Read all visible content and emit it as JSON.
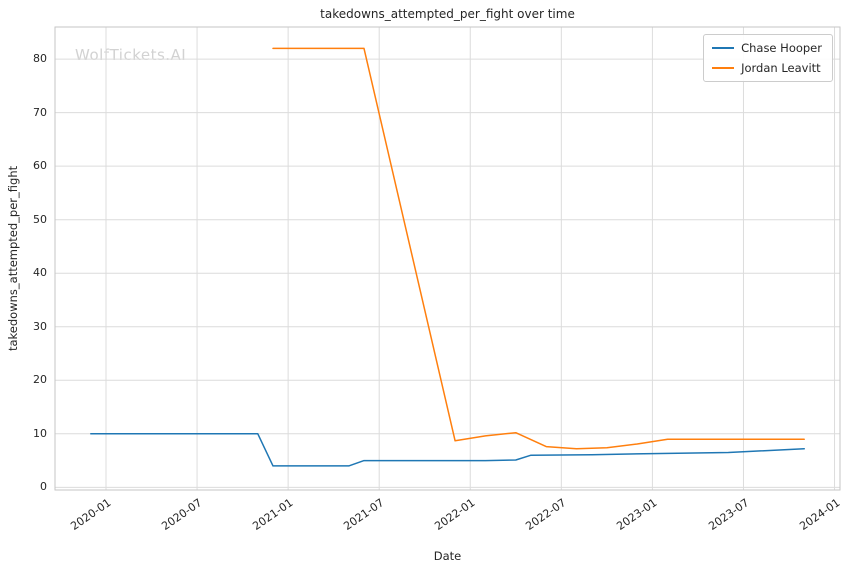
{
  "chart_data": {
    "type": "line",
    "title": "takedowns_attempted_per_fight over time",
    "xlabel": "Date",
    "ylabel": "takedowns_attempted_per_fight",
    "watermark": "WolfTickets.AI",
    "grid": true,
    "legend_position": "top-right",
    "x_ticks": [
      "2020-01",
      "2020-07",
      "2021-01",
      "2021-07",
      "2022-01",
      "2022-07",
      "2023-01",
      "2023-07",
      "2024-01"
    ],
    "y_ticks": [
      0,
      10,
      20,
      30,
      40,
      50,
      60,
      70,
      80
    ],
    "xlim": [
      2019.72,
      2024.03
    ],
    "ylim": [
      -0.5,
      86.0
    ],
    "colors": {
      "grid": "#dcdcdc",
      "spine": "#c6c6c6",
      "text": "#262626",
      "watermark": "#d2d2d2"
    },
    "series": [
      {
        "name": "Chase Hooper",
        "color": "#1f77b4",
        "points": [
          [
            "2019-12",
            10
          ],
          [
            "2020-06",
            10
          ],
          [
            "2020-11",
            10
          ],
          [
            "2020-12",
            4
          ],
          [
            "2021-05",
            4
          ],
          [
            "2021-06",
            5
          ],
          [
            "2021-10",
            5
          ],
          [
            "2022-02",
            5
          ],
          [
            "2022-04",
            5.1
          ],
          [
            "2022-05",
            6
          ],
          [
            "2022-09",
            6.1
          ],
          [
            "2023-01",
            6.3
          ],
          [
            "2023-06",
            6.5
          ],
          [
            "2023-11",
            7.2
          ]
        ]
      },
      {
        "name": "Jordan Leavitt",
        "color": "#ff7f0e",
        "points": [
          [
            "2020-12",
            82
          ],
          [
            "2021-02",
            82
          ],
          [
            "2021-06",
            82
          ],
          [
            "2021-12",
            8.7
          ],
          [
            "2022-02",
            9.6
          ],
          [
            "2022-04",
            10.2
          ],
          [
            "2022-06",
            7.6
          ],
          [
            "2022-08",
            7.2
          ],
          [
            "2022-10",
            7.4
          ],
          [
            "2022-12",
            8.1
          ],
          [
            "2023-02",
            9
          ],
          [
            "2023-06",
            9
          ],
          [
            "2023-11",
            9
          ]
        ]
      }
    ]
  }
}
